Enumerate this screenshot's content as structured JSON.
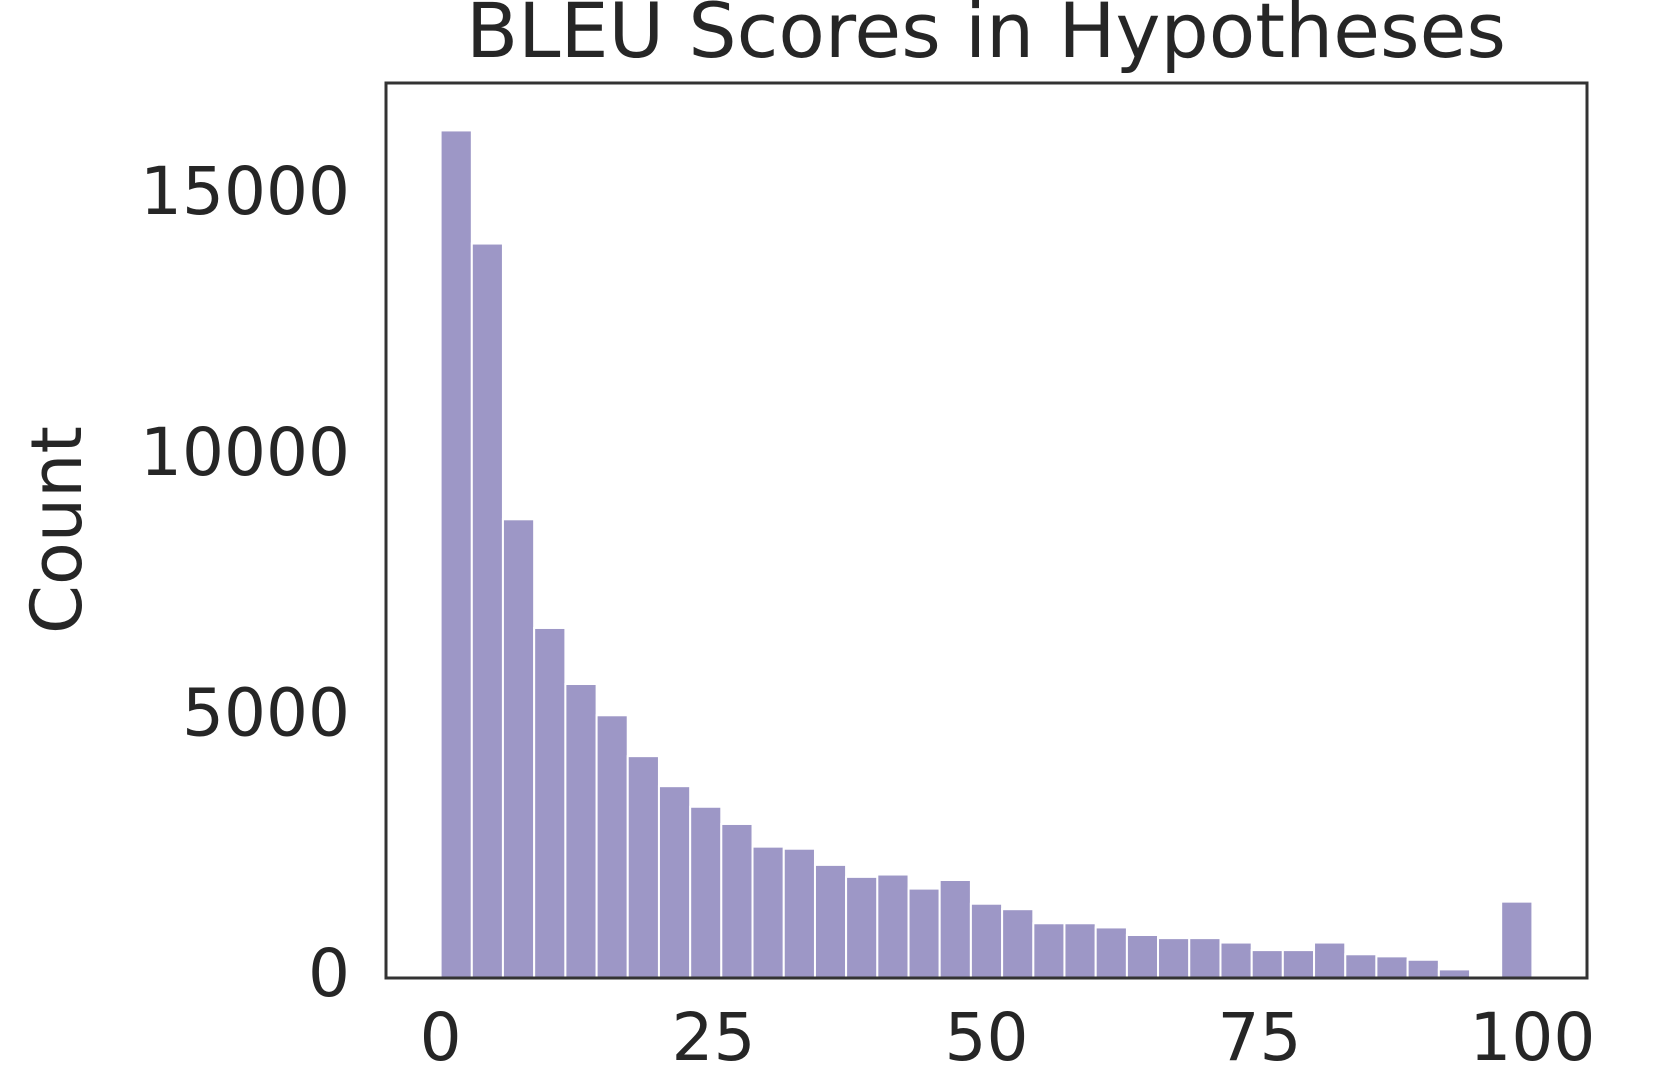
{
  "chart_data": {
    "type": "histogram",
    "title": "BLEU Scores in Hypotheses",
    "y_label": "Count",
    "bins": [
      0,
      2.86,
      5.71,
      8.57,
      11.43,
      14.29,
      17.14,
      20,
      22.86,
      25.71,
      28.57,
      31.43,
      34.29,
      37.14,
      40,
      42.86,
      45.71,
      48.57,
      51.43,
      54.29,
      57.14,
      60,
      62.86,
      65.71,
      68.57,
      71.43,
      74.29,
      77.14,
      80,
      82.86,
      85.71,
      88.57,
      91.43,
      94.29,
      97.14,
      100
    ],
    "counts": [
      16260,
      14090,
      8800,
      6715,
      5640,
      5040,
      4256,
      3680,
      3285,
      2955,
      2520,
      2480,
      2170,
      1940,
      1985,
      1715,
      1880,
      1425,
      1320,
      1050,
      1050,
      970,
      825,
      765,
      765,
      680,
      535,
      535,
      680,
      455,
      415,
      350,
      165,
      0,
      1465
    ],
    "color": "#9d97c6",
    "xlim": [
      -5,
      105
    ],
    "xticks": [
      0,
      25,
      50,
      75,
      100
    ],
    "ylim": [
      0,
      17170
    ],
    "yticks": [
      0,
      5000,
      10000,
      15000
    ],
    "grid": false
  }
}
